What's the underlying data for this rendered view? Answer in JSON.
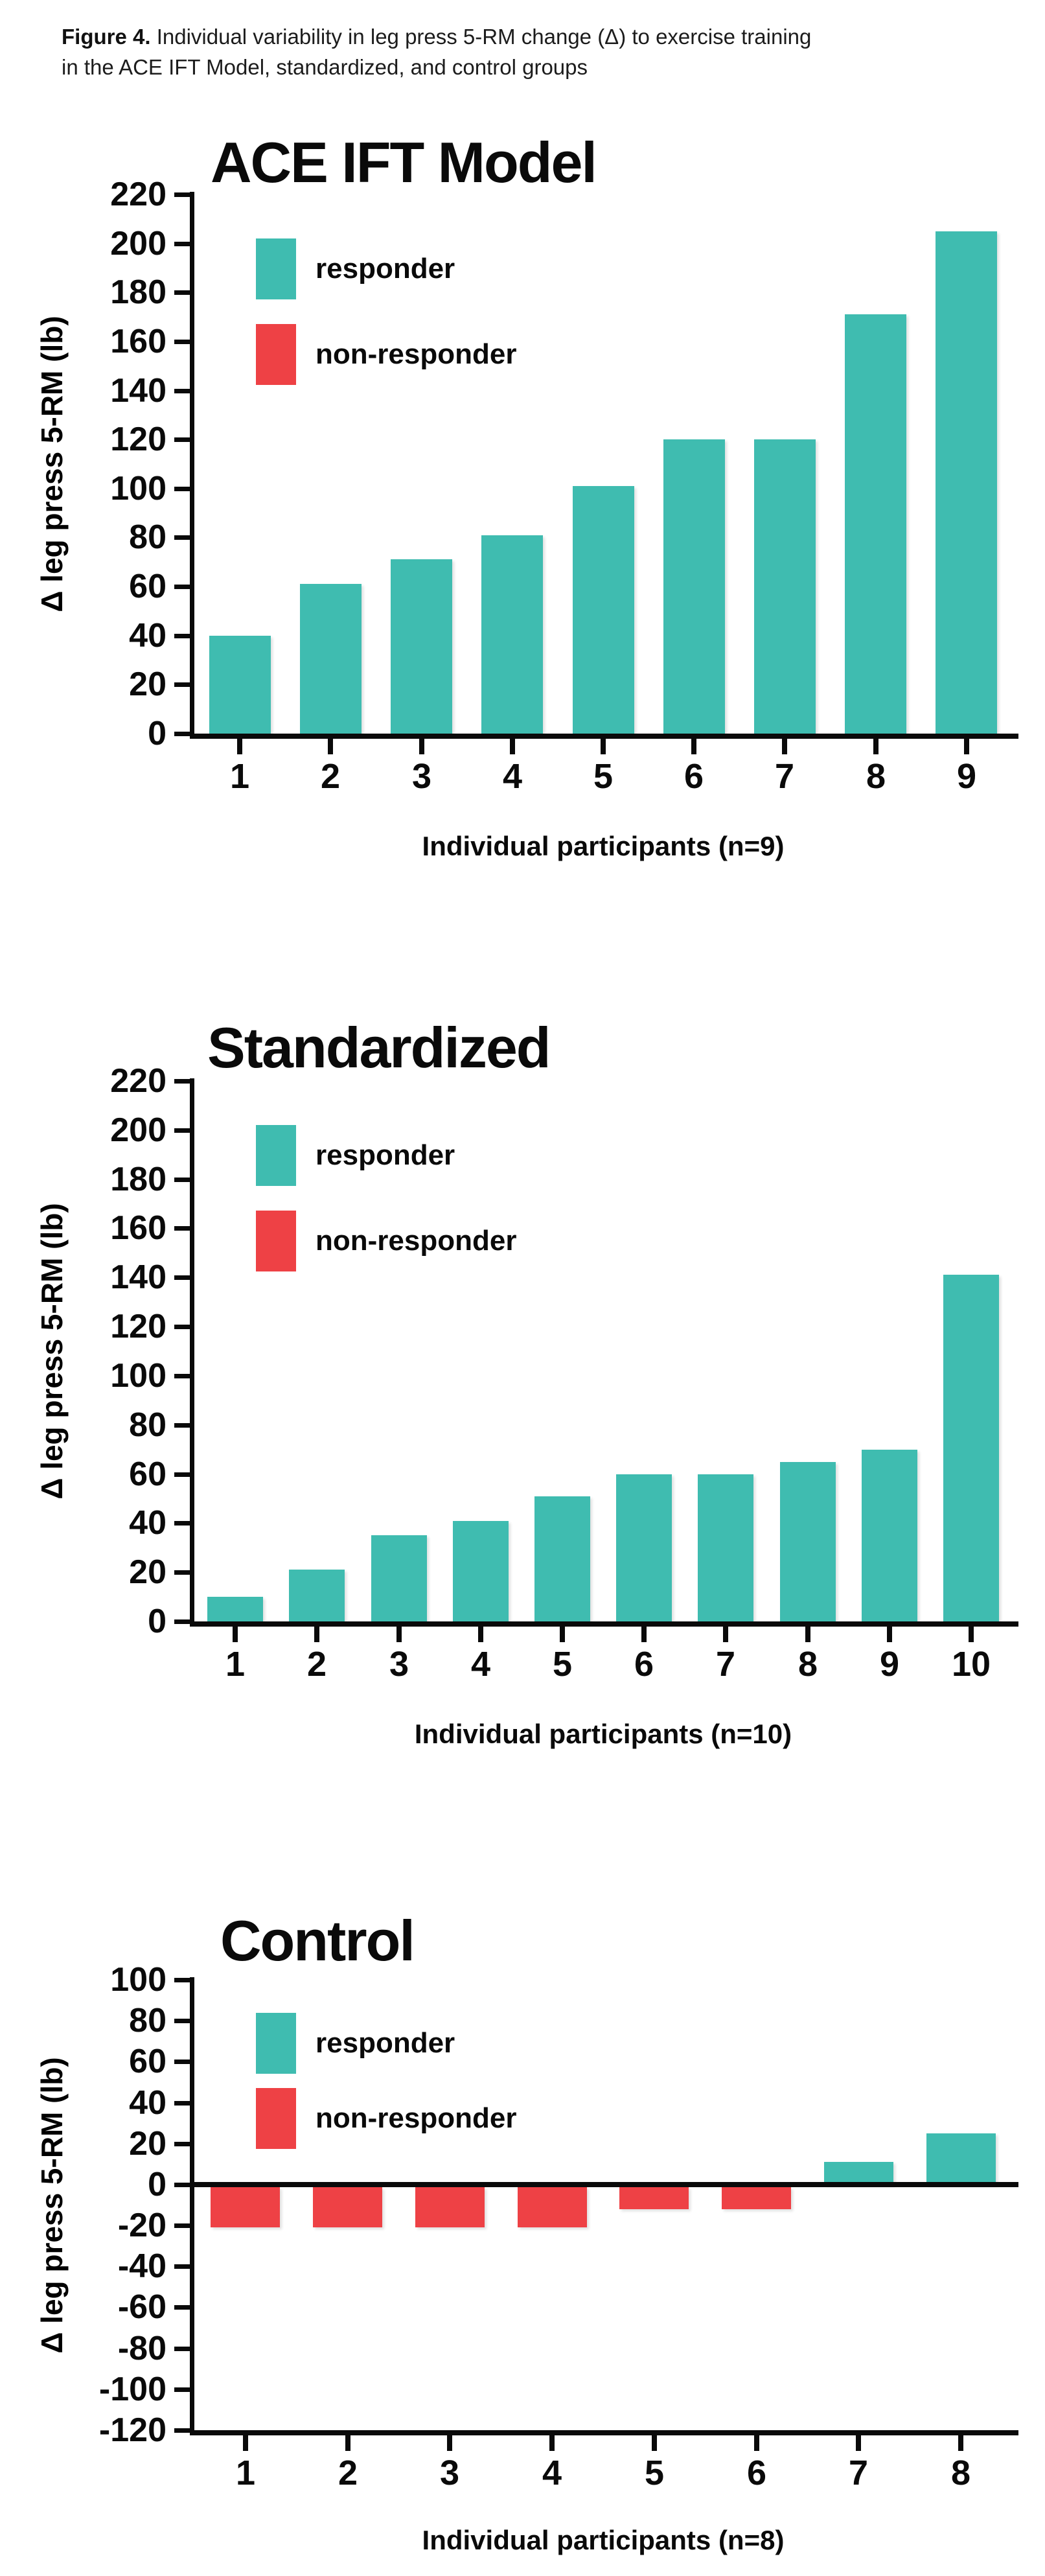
{
  "figure_caption": {
    "label": "Figure 4.",
    "text": " Individual variability in leg press 5-RM change (Δ) to exercise training in the ACE IFT Model, standardized, and control groups"
  },
  "colors": {
    "responder": "#3fbcb0",
    "non_responder": "#ee4145",
    "axis": "#0a0a0a"
  },
  "legend": {
    "responder_label": "responder",
    "non_responder_label": "non-responder"
  },
  "chart_data": [
    {
      "type": "bar",
      "title": "ACE IFT Model",
      "ylabel": "Δ leg press 5-RM (lb)",
      "xlabel": "Individual participants (n=9)",
      "ylim": [
        0,
        220
      ],
      "ytick_step": 20,
      "grid": false,
      "legend_position": "top-left",
      "legend_entries": [
        "responder",
        "non-responder"
      ],
      "categories": [
        "1",
        "2",
        "3",
        "4",
        "5",
        "6",
        "7",
        "8",
        "9"
      ],
      "values": [
        40,
        61,
        71,
        81,
        101,
        120,
        120,
        171,
        205
      ],
      "bar_types": [
        "responder",
        "responder",
        "responder",
        "responder",
        "responder",
        "responder",
        "responder",
        "responder",
        "responder"
      ]
    },
    {
      "type": "bar",
      "title": "Standardized",
      "ylabel": "Δ leg press 5-RM (lb)",
      "xlabel": "Individual participants (n=10)",
      "ylim": [
        0,
        220
      ],
      "ytick_step": 20,
      "grid": false,
      "legend_position": "top-left",
      "legend_entries": [
        "responder",
        "non-responder"
      ],
      "categories": [
        "1",
        "2",
        "3",
        "4",
        "5",
        "6",
        "7",
        "8",
        "9",
        "10"
      ],
      "values": [
        10,
        21,
        35,
        41,
        51,
        60,
        60,
        65,
        70,
        141
      ],
      "bar_types": [
        "responder",
        "responder",
        "responder",
        "responder",
        "responder",
        "responder",
        "responder",
        "responder",
        "responder",
        "responder"
      ]
    },
    {
      "type": "bar",
      "title": "Control",
      "ylabel": "Δ leg press 5-RM (lb)",
      "xlabel": "Individual participants (n=8)",
      "ylim": [
        -120,
        100
      ],
      "ytick_step": 20,
      "grid": false,
      "legend_position": "top-left",
      "legend_entries": [
        "responder",
        "non-responder"
      ],
      "categories": [
        "1",
        "2",
        "3",
        "4",
        "5",
        "6",
        "7",
        "8"
      ],
      "values": [
        -21,
        -21,
        -21,
        -21,
        -12,
        -12,
        11,
        25
      ],
      "bar_types": [
        "non-responder",
        "non-responder",
        "non-responder",
        "non-responder",
        "non-responder",
        "non-responder",
        "responder",
        "responder"
      ]
    }
  ]
}
